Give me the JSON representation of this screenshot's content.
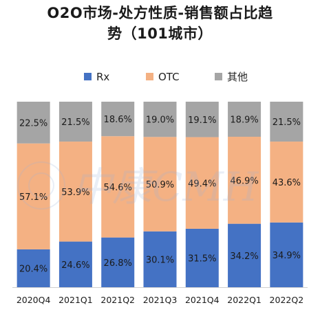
{
  "title_lines": [
    "O2O市场-处方性质-销售额占比趋",
    "势（101城市）"
  ],
  "watermark": "中康CMH",
  "colors": {
    "Rx": "#4472c4",
    "OTC": "#f4b183",
    "其他": "#a5a5a5"
  },
  "chart_data": {
    "type": "bar",
    "stacked": true,
    "percent": true,
    "categories": [
      "2020Q4",
      "2021Q1",
      "2021Q2",
      "2021Q3",
      "2021Q4",
      "2022Q1",
      "2022Q2"
    ],
    "series": [
      {
        "name": "Rx",
        "values": [
          20.4,
          24.6,
          26.8,
          30.1,
          31.5,
          34.2,
          34.9
        ],
        "labels": [
          "20.4%",
          "24.6%",
          "26.8%",
          "30.1%",
          "31.5%",
          "34.2%",
          "34.9%"
        ]
      },
      {
        "name": "OTC",
        "values": [
          57.1,
          53.9,
          54.6,
          50.9,
          49.4,
          46.9,
          43.6
        ],
        "labels": [
          "57.1%",
          "53.9%",
          "54.6%",
          "50.9%",
          "49.4%",
          "46.9%",
          "43.6%"
        ]
      },
      {
        "name": "其他",
        "values": [
          22.5,
          21.5,
          18.6,
          19.0,
          19.1,
          18.9,
          21.5
        ],
        "labels": [
          "22.5%",
          "21.5%",
          "18.6%",
          "19.0%",
          "19.1%",
          "18.9%",
          "21.5%"
        ]
      }
    ],
    "legend_position": "top",
    "ylim": [
      0,
      100
    ],
    "grid": false
  }
}
